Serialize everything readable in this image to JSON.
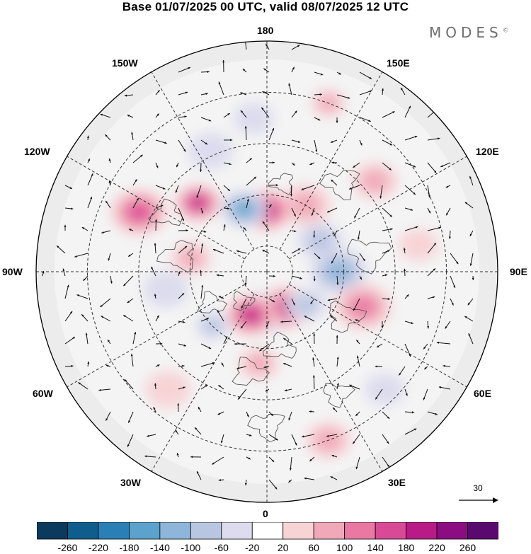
{
  "title": "Base 01/07/2025 00 UTC, valid 08/07/2025 12 UTC",
  "brand": {
    "text": "MODES",
    "mark": "©"
  },
  "lon_labels": {
    "north": "180",
    "south": "0",
    "west": "90W",
    "east": "90E",
    "nw1": "150W",
    "nw2": "120W",
    "ne1": "150E",
    "ne2": "120E",
    "sw1": "60W",
    "sw2": "30W",
    "se1": "60E",
    "se2": "30E"
  },
  "reference_vector": {
    "value": "30"
  },
  "colorbar": {
    "ticks": [
      "-260",
      "-220",
      "-180",
      "-140",
      "-100",
      "-60",
      "-20",
      "20",
      "60",
      "100",
      "140",
      "180",
      "220",
      "260"
    ],
    "colors": [
      "#0b3a5c",
      "#0f5d8c",
      "#2a7fb6",
      "#5ba2cc",
      "#8db6da",
      "#b9c6e2",
      "#dcdcee",
      "#ffffff",
      "#f7d3d6",
      "#f1a8b8",
      "#e978a3",
      "#d94a96",
      "#b81a86",
      "#8c0d82",
      "#5a0a6e"
    ]
  },
  "anomalies": [
    {
      "lon": 0,
      "colat": 16,
      "value": -160,
      "size": 9
    },
    {
      "lon": 30,
      "colat": 16,
      "value": 215,
      "size": 9
    },
    {
      "lon": 50,
      "colat": 20,
      "value": -80,
      "size": 7
    },
    {
      "lon": -20,
      "colat": 18,
      "value": 190,
      "size": 9
    },
    {
      "lon": -45,
      "colat": 30,
      "value": -90,
      "size": 6
    },
    {
      "lon": -5,
      "colat": 36,
      "value": 80,
      "size": 7
    },
    {
      "lon": 90,
      "colat": 28,
      "value": -130,
      "size": 10
    },
    {
      "lon": 70,
      "colat": 40,
      "value": 120,
      "size": 10
    },
    {
      "lon": 120,
      "colat": 24,
      "value": -70,
      "size": 8
    },
    {
      "lon": 150,
      "colat": 30,
      "value": 90,
      "size": 9
    },
    {
      "lon": 180,
      "colat": 24,
      "value": 180,
      "size": 9
    },
    {
      "lon": -160,
      "colat": 26,
      "value": -170,
      "size": 8
    },
    {
      "lon": -135,
      "colat": 38,
      "value": 200,
      "size": 8
    },
    {
      "lon": -155,
      "colat": 52,
      "value": -60,
      "size": 8
    },
    {
      "lon": -115,
      "colat": 55,
      "value": 150,
      "size": 10
    },
    {
      "lon": -100,
      "colat": 30,
      "value": 60,
      "size": 7
    },
    {
      "lon": -80,
      "colat": 40,
      "value": -60,
      "size": 8
    },
    {
      "lon": 130,
      "colat": 55,
      "value": 90,
      "size": 8
    },
    {
      "lon": 160,
      "colat": 70,
      "value": 60,
      "size": 6
    },
    {
      "lon": -175,
      "colat": 60,
      "value": -30,
      "size": 7
    },
    {
      "lon": 20,
      "colat": 70,
      "value": 70,
      "size": 8
    },
    {
      "lon": 45,
      "colat": 65,
      "value": -30,
      "size": 7
    },
    {
      "lon": -40,
      "colat": 60,
      "value": 50,
      "size": 8
    },
    {
      "lon": 100,
      "colat": 60,
      "value": 40,
      "size": 7
    }
  ]
}
